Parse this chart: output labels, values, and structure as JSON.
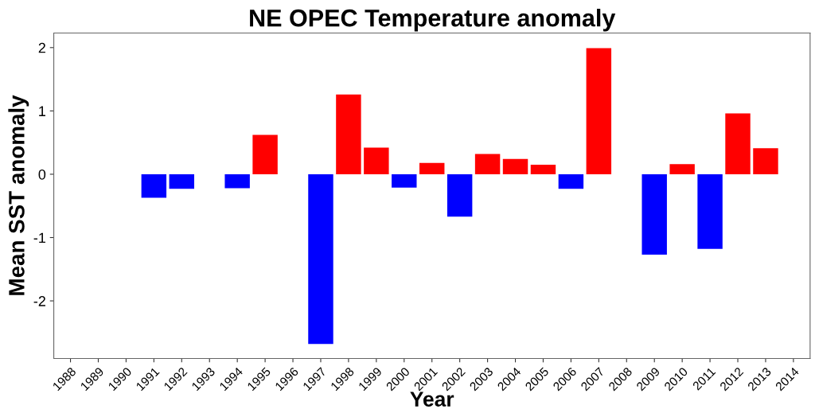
{
  "chart_data": {
    "type": "bar",
    "title": "NE OPEC Temperature anomaly",
    "xlabel": "Year",
    "ylabel": "Mean SST anomaly",
    "categories": [
      "1988",
      "1989",
      "1990",
      "1991",
      "1992",
      "1993",
      "1994",
      "1995",
      "1996",
      "1997",
      "1998",
      "1999",
      "2000",
      "2001",
      "2002",
      "2003",
      "2004",
      "2005",
      "2006",
      "2007",
      "2008",
      "2009",
      "2010",
      "2011",
      "2012",
      "2013",
      "2014"
    ],
    "values": [
      null,
      null,
      null,
      -0.37,
      -0.23,
      null,
      -0.22,
      0.62,
      null,
      -2.68,
      1.26,
      0.42,
      -0.21,
      0.18,
      -0.67,
      0.32,
      0.24,
      0.15,
      -0.23,
      1.99,
      null,
      -1.27,
      0.16,
      -1.18,
      0.96,
      0.41,
      null
    ],
    "colors": [
      null,
      null,
      null,
      "#0000ff",
      "#0000ff",
      null,
      "#0000ff",
      "#ff0000",
      null,
      "#0000ff",
      "#ff0000",
      "#ff0000",
      "#0000ff",
      "#ff0000",
      "#0000ff",
      "#ff0000",
      "#ff0000",
      "#ff0000",
      "#0000ff",
      "#ff0000",
      null,
      "#0000ff",
      "#ff0000",
      "#0000ff",
      "#ff0000",
      "#ff0000",
      null
    ],
    "ylim": [
      -2.91,
      2.23
    ],
    "yticks": [
      -2,
      -1,
      0,
      1,
      2
    ],
    "grid": false
  }
}
